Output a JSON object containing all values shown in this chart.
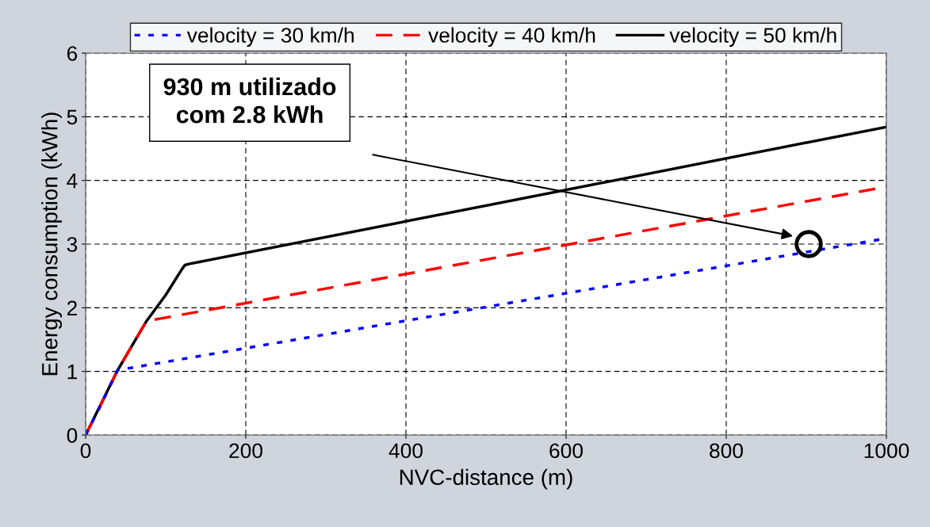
{
  "chart_data": {
    "type": "line",
    "xlabel": "NVC-distance (m)",
    "ylabel": "Energy consumption (kWh)",
    "xlim": [
      0,
      1000
    ],
    "xticks": [
      0,
      200,
      400,
      600,
      800,
      1000
    ],
    "ylim": [
      0,
      6
    ],
    "yticks": [
      0,
      1,
      2,
      3,
      4,
      5,
      6
    ],
    "grid": true,
    "legend": "top",
    "marker": "none",
    "series": [
      {
        "name": "velocity = 30 km/h",
        "color": "#0000ff",
        "line_style": "dotted",
        "x": [
          0,
          20,
          40,
          1000
        ],
        "values": [
          0,
          0.5,
          1.02,
          3.09
        ]
      },
      {
        "name": "velocity = 40 km/h",
        "color": "#ff0000",
        "line_style": "dashed",
        "x": [
          0,
          20,
          40,
          60,
          76,
          1000
        ],
        "values": [
          0,
          0.5,
          1.02,
          1.45,
          1.79,
          3.9
        ]
      },
      {
        "name": "velocity = 50 km/h",
        "color": "#000000",
        "line_style": "solid",
        "x": [
          0,
          40,
          60,
          76,
          100,
          120,
          124,
          130,
          1000
        ],
        "values": [
          0,
          1.02,
          1.45,
          1.79,
          2.2,
          2.6,
          2.67,
          2.69,
          4.84
        ]
      }
    ],
    "annotations": [
      "930 m utilizado\ncom 2.8 kWh"
    ]
  }
}
